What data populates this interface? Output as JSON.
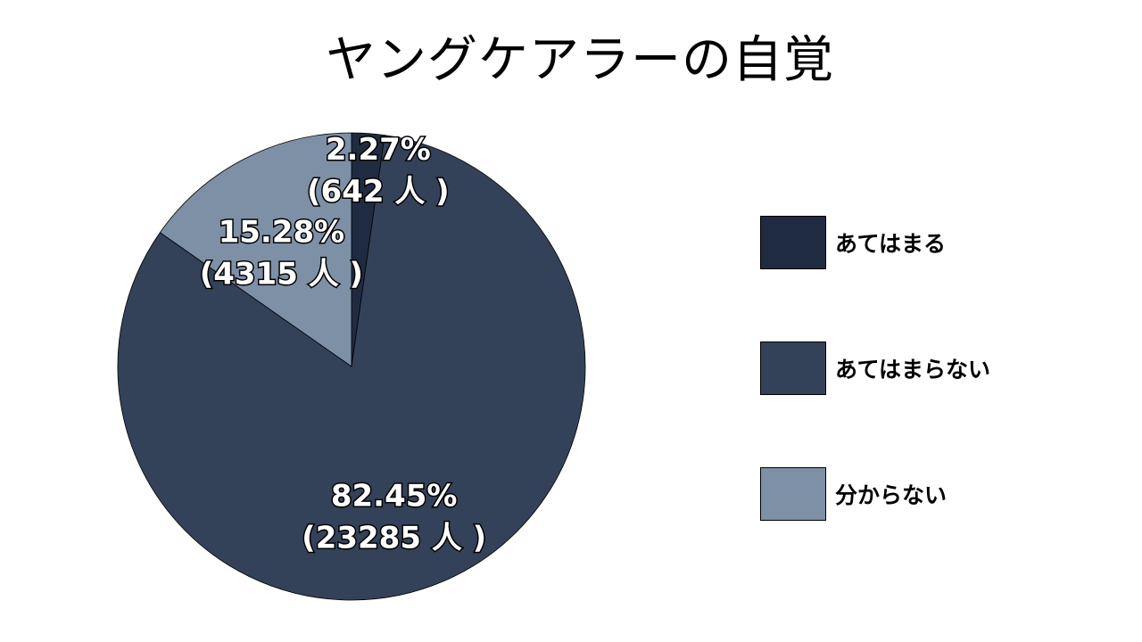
{
  "chart_data": {
    "type": "pie",
    "title": "ヤングケアラーの自覚",
    "slices": [
      {
        "label": "あてはまる",
        "percent": 2.27,
        "count": 642,
        "pct_text": "2.27%",
        "count_text": "(642 人 )",
        "color": "#1f2b40"
      },
      {
        "label": "あてはまらない",
        "percent": 82.45,
        "count": 23285,
        "pct_text": "82.45%",
        "count_text": "(23285 人 )",
        "color": "#334259"
      },
      {
        "label": "分からない",
        "percent": 15.28,
        "count": 4315,
        "pct_text": "15.28%",
        "count_text": "(4315 人 )",
        "color": "#7d90a6"
      }
    ],
    "start_angle_deg": 0,
    "direction": "clockwise",
    "legend_position": "right"
  }
}
